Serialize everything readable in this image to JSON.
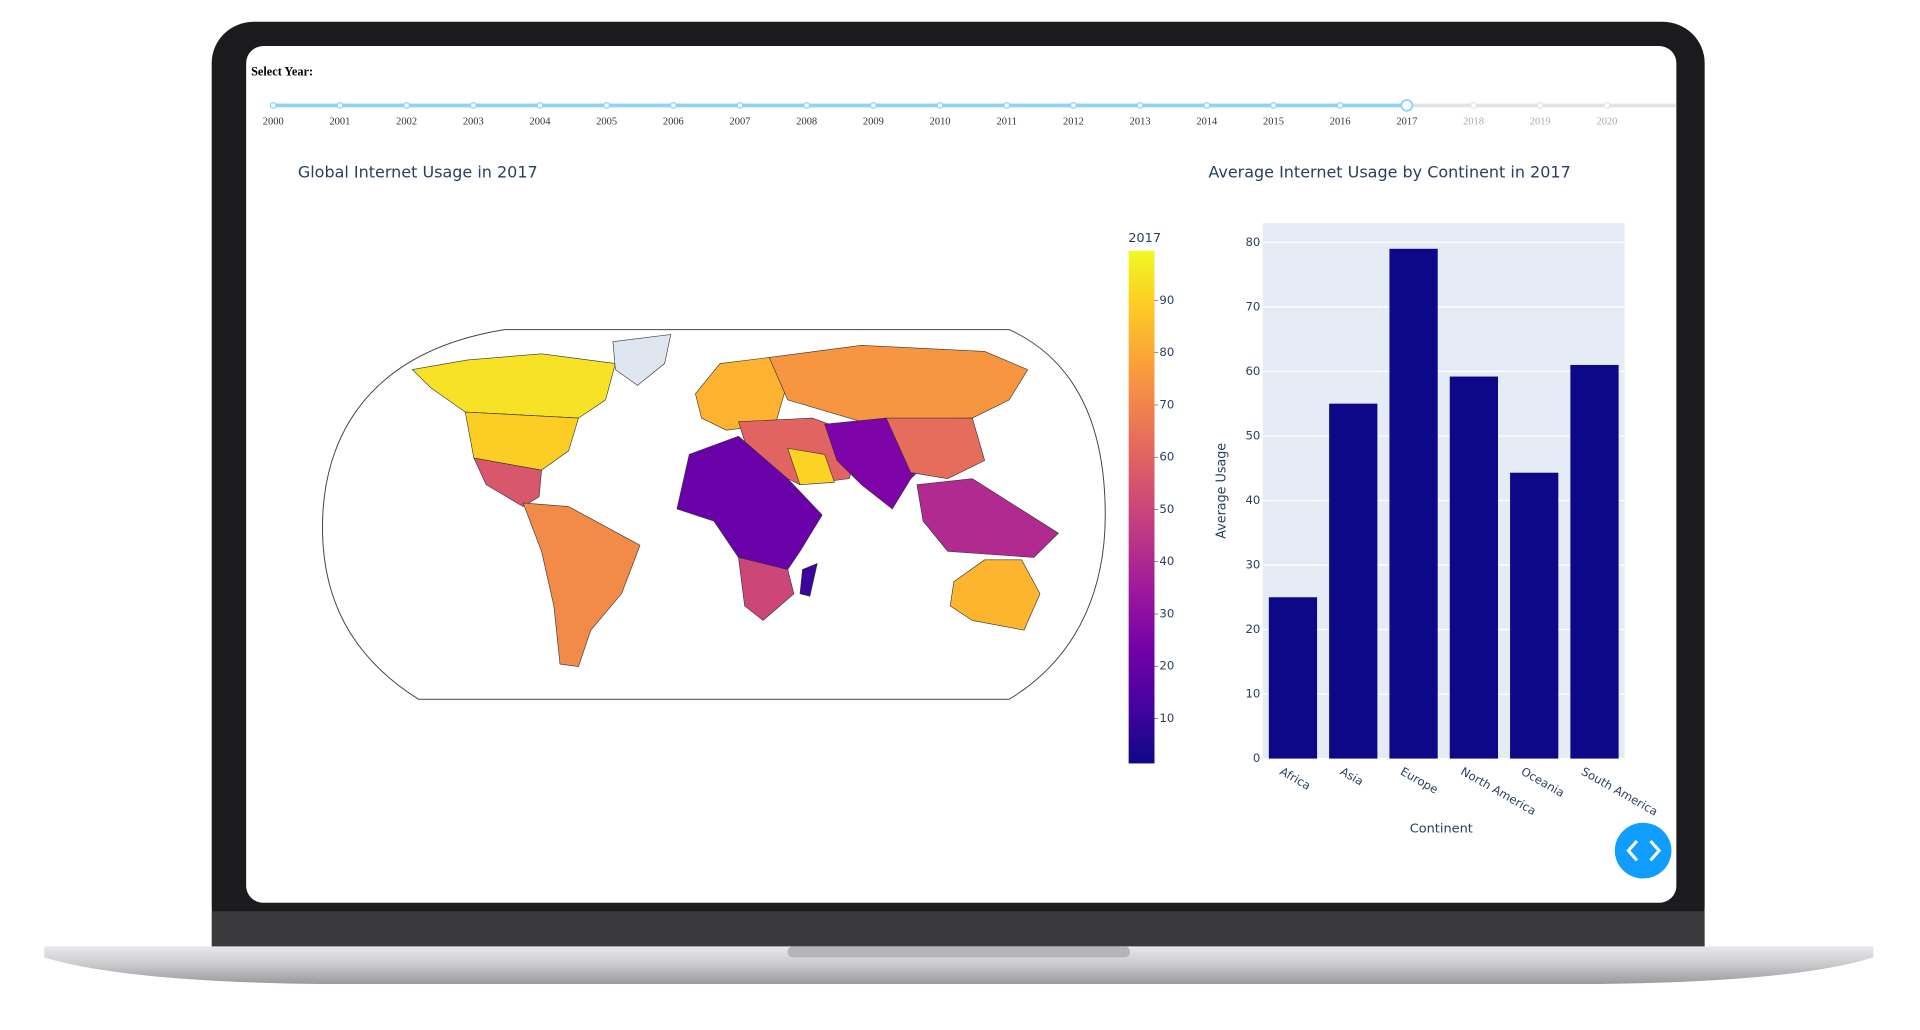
{
  "slider": {
    "label": "Select Year:",
    "years": [
      2000,
      2001,
      2002,
      2003,
      2004,
      2005,
      2006,
      2007,
      2008,
      2009,
      2010,
      2011,
      2012,
      2013,
      2014,
      2015,
      2016,
      2017,
      2018,
      2019,
      2020
    ],
    "selected": 2017
  },
  "chart_data": [
    {
      "type": "choropleth",
      "title": "Global Internet Usage in 2017",
      "colorbar": {
        "title": "2017",
        "lim": [
          1.4,
          99.5
        ],
        "ticks": [
          10,
          20,
          30,
          40,
          50,
          60,
          70,
          80,
          90
        ],
        "colorscale": [
          "#0d0887",
          "#46039f",
          "#7201a8",
          "#9c179e",
          "#bd3786",
          "#d8576b",
          "#ed7953",
          "#fb9f3a",
          "#fdca26",
          "#f0f921"
        ]
      }
    },
    {
      "type": "bar",
      "title": "Average Internet Usage by Continent in 2017",
      "categories": [
        "Africa",
        "Asia",
        "Europe",
        "North America",
        "Oceania",
        "South America"
      ],
      "values": [
        25,
        55,
        79,
        59.2,
        44.3,
        61
      ],
      "color": "#0d0887",
      "ylim": [
        0,
        83
      ],
      "yticks": [
        0,
        10,
        20,
        30,
        40,
        50,
        60,
        70,
        80
      ],
      "xlabel": "Continent",
      "ylabel": "Average Usage",
      "grid": true
    }
  ]
}
